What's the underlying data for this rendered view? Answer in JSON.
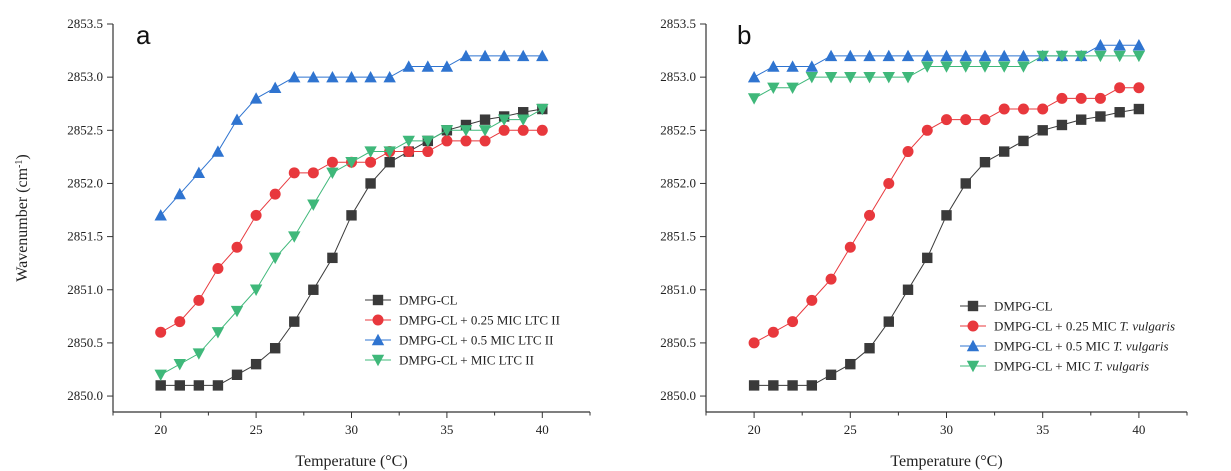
{
  "chart_data": [
    {
      "type": "line",
      "panel_label": "a",
      "xlabel": "Temperature (°C)",
      "ylabel": "Wavenumber (cm",
      "ylabel_sup": "-1",
      "ylabel_close": ")",
      "xlim": [
        17.5,
        42.5
      ],
      "ylim": [
        2849.85,
        2853.5
      ],
      "xticks": [
        20,
        25,
        30,
        35,
        40
      ],
      "yticks": [
        2850.0,
        2850.5,
        2851.0,
        2851.5,
        2852.0,
        2852.5,
        2853.0,
        2853.5
      ],
      "ytick_labels": [
        "2850.0",
        "2850.5",
        "2851.0",
        "2851.5",
        "2852.0",
        "2852.5",
        "2853.0",
        "2853.5"
      ],
      "grid": false,
      "legend_position": "bottom-right",
      "x": [
        20,
        21,
        22,
        23,
        24,
        25,
        26,
        27,
        28,
        29,
        30,
        31,
        32,
        33,
        34,
        35,
        36,
        37,
        38,
        39,
        40
      ],
      "series": [
        {
          "name": "DMPG-CL",
          "name_italic": "",
          "color": "#3a3a3a",
          "marker": "square",
          "values": [
            2850.1,
            2850.1,
            2850.1,
            2850.1,
            2850.2,
            2850.3,
            2850.45,
            2850.7,
            2851.0,
            2851.3,
            2851.7,
            2852.0,
            2852.2,
            2852.3,
            2852.4,
            2852.5,
            2852.55,
            2852.6,
            2852.63,
            2852.67,
            2852.7
          ]
        },
        {
          "name": "DMPG-CL + 0.25 MIC LTC II",
          "name_italic": "",
          "color": "#e8383d",
          "marker": "circle",
          "values": [
            2850.6,
            2850.7,
            2850.9,
            2851.2,
            2851.4,
            2851.7,
            2851.9,
            2852.1,
            2852.1,
            2852.2,
            2852.2,
            2852.2,
            2852.3,
            2852.3,
            2852.3,
            2852.4,
            2852.4,
            2852.4,
            2852.5,
            2852.5,
            2852.5
          ]
        },
        {
          "name": "DMPG-CL + 0.5 MIC LTC II",
          "name_italic": "",
          "color": "#2f74d0",
          "marker": "triangle-up",
          "values": [
            2851.7,
            2851.9,
            2852.1,
            2852.3,
            2852.6,
            2852.8,
            2852.9,
            2853.0,
            2853.0,
            2853.0,
            2853.0,
            2853.0,
            2853.0,
            2853.1,
            2853.1,
            2853.1,
            2853.2,
            2853.2,
            2853.2,
            2853.2,
            2853.2
          ]
        },
        {
          "name": "DMPG-CL + MIC LTC II",
          "name_italic": "",
          "color": "#3fb87a",
          "marker": "triangle-down",
          "values": [
            2850.2,
            2850.3,
            2850.4,
            2850.6,
            2850.8,
            2851.0,
            2851.3,
            2851.5,
            2851.8,
            2852.1,
            2852.2,
            2852.3,
            2852.3,
            2852.4,
            2852.4,
            2852.5,
            2852.5,
            2852.5,
            2852.6,
            2852.6,
            2852.7
          ]
        }
      ]
    },
    {
      "type": "line",
      "panel_label": "b",
      "xlabel": "Temperature (°C)",
      "xlim": [
        17.5,
        42.5
      ],
      "ylim": [
        2849.85,
        2853.5
      ],
      "xticks": [
        20,
        25,
        30,
        35,
        40
      ],
      "yticks": [
        2850.0,
        2850.5,
        2851.0,
        2851.5,
        2852.0,
        2852.5,
        2853.0,
        2853.5
      ],
      "ytick_labels": [
        "2850.0",
        "2850.5",
        "2851.0",
        "2851.5",
        "2852.0",
        "2852.5",
        "2853.0",
        "2853.5"
      ],
      "grid": false,
      "legend_position": "bottom-right",
      "x": [
        20,
        21,
        22,
        23,
        24,
        25,
        26,
        27,
        28,
        29,
        30,
        31,
        32,
        33,
        34,
        35,
        36,
        37,
        38,
        39,
        40
      ],
      "series": [
        {
          "name": "DMPG-CL",
          "name_italic": "",
          "color": "#3a3a3a",
          "marker": "square",
          "values": [
            2850.1,
            2850.1,
            2850.1,
            2850.1,
            2850.2,
            2850.3,
            2850.45,
            2850.7,
            2851.0,
            2851.3,
            2851.7,
            2852.0,
            2852.2,
            2852.3,
            2852.4,
            2852.5,
            2852.55,
            2852.6,
            2852.63,
            2852.67,
            2852.7
          ]
        },
        {
          "name": "DMPG-CL + 0.25 MIC ",
          "name_italic": "T. vulgaris",
          "color": "#e8383d",
          "marker": "circle",
          "values": [
            2850.5,
            2850.6,
            2850.7,
            2850.9,
            2851.1,
            2851.4,
            2851.7,
            2852.0,
            2852.3,
            2852.5,
            2852.6,
            2852.6,
            2852.6,
            2852.7,
            2852.7,
            2852.7,
            2852.8,
            2852.8,
            2852.8,
            2852.9,
            2852.9
          ]
        },
        {
          "name": "DMPG-CL + 0.5 MIC ",
          "name_italic": "T. vulgaris",
          "color": "#2f74d0",
          "marker": "triangle-up",
          "values": [
            2853.0,
            2853.1,
            2853.1,
            2853.1,
            2853.2,
            2853.2,
            2853.2,
            2853.2,
            2853.2,
            2853.2,
            2853.2,
            2853.2,
            2853.2,
            2853.2,
            2853.2,
            2853.2,
            2853.2,
            2853.2,
            2853.3,
            2853.3,
            2853.3
          ]
        },
        {
          "name": "DMPG-CL + MIC ",
          "name_italic": "T. vulgaris",
          "color": "#3fb87a",
          "marker": "triangle-down",
          "values": [
            2852.8,
            2852.9,
            2852.9,
            2853.0,
            2853.0,
            2853.0,
            2853.0,
            2853.0,
            2853.0,
            2853.1,
            2853.1,
            2853.1,
            2853.1,
            2853.1,
            2853.1,
            2853.2,
            2853.2,
            2853.2,
            2853.2,
            2853.2,
            2853.2
          ]
        }
      ]
    }
  ]
}
